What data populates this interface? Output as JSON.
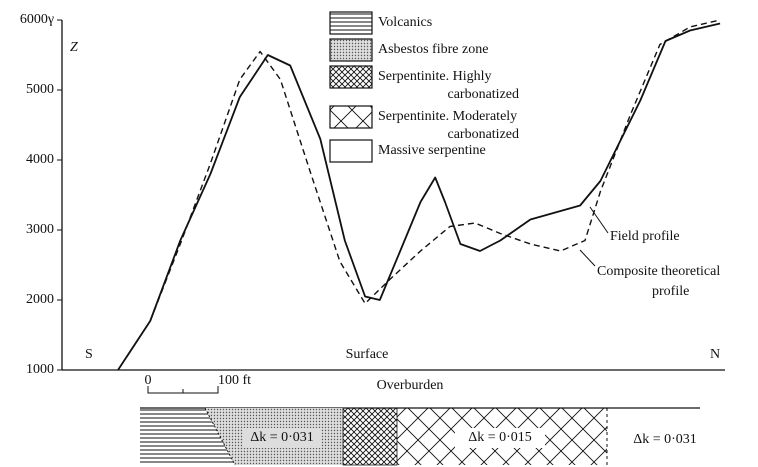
{
  "chart_data": {
    "type": "line",
    "y_label": "Z",
    "ylim": [
      1000,
      6000
    ],
    "yticks": [
      1000,
      2000,
      3000,
      4000,
      5000,
      {
        "value": 6000,
        "label": "6000γ"
      }
    ],
    "xlim": [
      -123,
      824
    ],
    "series": [
      {
        "name": "Field profile",
        "color": "#111111",
        "dash": false,
        "x": [
          -43,
          3,
          46,
          89,
          131,
          171,
          203,
          246,
          281,
          310,
          331,
          360,
          389,
          410,
          424,
          446,
          474,
          503,
          546,
          617,
          646,
          703,
          739,
          774,
          817
        ],
        "values": [
          1000,
          1700,
          2850,
          3800,
          4900,
          5500,
          5350,
          4300,
          2850,
          2050,
          2000,
          2700,
          3400,
          3750,
          3400,
          2800,
          2700,
          2850,
          3150,
          3350,
          3700,
          4850,
          5700,
          5850,
          5950
        ]
      },
      {
        "name": "Composite theoretical profile",
        "color": "#111111",
        "dash": true,
        "x": [
          3,
          46,
          89,
          131,
          160,
          189,
          231,
          274,
          310,
          346,
          389,
          431,
          467,
          503,
          546,
          589,
          624,
          646,
          689,
          731,
          774,
          817
        ],
        "values": [
          1700,
          2800,
          3950,
          5150,
          5550,
          5150,
          3850,
          2550,
          1950,
          2300,
          2700,
          3050,
          3100,
          2950,
          2800,
          2700,
          2850,
          3550,
          4650,
          5650,
          5900,
          6000
        ]
      }
    ],
    "annotations": {
      "field": [
        "Field profile"
      ],
      "theory": [
        "Composite theoretical",
        "profile"
      ],
      "south": "S",
      "north": "N",
      "surface": "Surface",
      "overburden": "Overburden"
    },
    "scale_bar": [
      "0",
      "100 ft"
    ],
    "legend_items": [
      [
        "Volcanics"
      ],
      [
        "Asbestos fibre zone"
      ],
      [
        "Serpentinite. Highly",
        "carbonatized"
      ],
      [
        "Serpentinite. Moderately",
        "carbonatized"
      ],
      [
        "Massive serpentine"
      ]
    ],
    "section_labels": [
      "Δk = 0·031",
      "Δk = 0·015",
      "Δk = 0·031"
    ]
  }
}
